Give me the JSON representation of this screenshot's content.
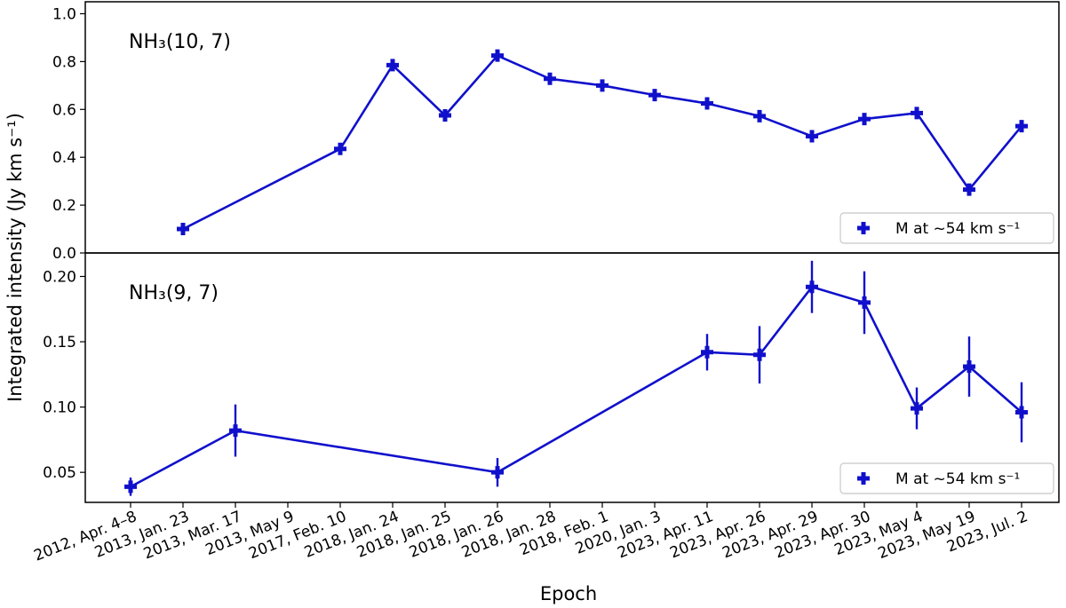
{
  "chart_data": [
    {
      "type": "line",
      "panel_label": "NH₃(10, 7)",
      "ylabel": "Integrated intensity (Jy km s⁻¹)",
      "xlabel": "Epoch",
      "ylim": [
        0.0,
        1.05
      ],
      "yticks": [
        "0.0",
        "0.2",
        "0.4",
        "0.6",
        "0.8",
        "1.0"
      ],
      "ytick_values": [
        0.0,
        0.2,
        0.4,
        0.6,
        0.8,
        1.0
      ],
      "categories": [
        "2012, Apr. 4–8",
        "2013, Jan. 23",
        "2013, Mar. 17",
        "2013, May 9",
        "2017, Feb. 10",
        "2018, Jan. 24",
        "2018, Jan. 25",
        "2018, Jan. 26",
        "2018, Jan. 28",
        "2018, Feb. 1",
        "2020, Jan. 3",
        "2023, Apr. 11",
        "2023, Apr. 26",
        "2023, Apr. 29",
        "2023, Apr. 30",
        "2023, May 4",
        "2023, May 19",
        "2023, Jul. 2"
      ],
      "series": [
        {
          "name": "M at ~54 km s⁻¹",
          "color": "#1010cc",
          "points": [
            {
              "x": "2013, Jan. 23",
              "y": 0.1,
              "err": 0.012
            },
            {
              "x": "2017, Feb. 10",
              "y": 0.435,
              "err": 0.012
            },
            {
              "x": "2018, Jan. 24",
              "y": 0.785,
              "err": 0.012
            },
            {
              "x": "2018, Jan. 25",
              "y": 0.575,
              "err": 0.012
            },
            {
              "x": "2018, Jan. 26",
              "y": 0.825,
              "err": 0.012
            },
            {
              "x": "2018, Jan. 28",
              "y": 0.728,
              "err": 0.012
            },
            {
              "x": "2018, Feb. 1",
              "y": 0.7,
              "err": 0.012
            },
            {
              "x": "2020, Jan. 3",
              "y": 0.66,
              "err": 0.012
            },
            {
              "x": "2023, Apr. 11",
              "y": 0.625,
              "err": 0.012
            },
            {
              "x": "2023, Apr. 26",
              "y": 0.572,
              "err": 0.012
            },
            {
              "x": "2023, Apr. 29",
              "y": 0.488,
              "err": 0.012
            },
            {
              "x": "2023, Apr. 30",
              "y": 0.56,
              "err": 0.012
            },
            {
              "x": "2023, May 4",
              "y": 0.585,
              "err": 0.012
            },
            {
              "x": "2023, May 19",
              "y": 0.265,
              "err": 0.012
            },
            {
              "x": "2023, Jul. 2",
              "y": 0.53,
              "err": 0.012
            }
          ]
        }
      ],
      "legend": {
        "label": "M at ~54 km s⁻¹",
        "placement": "lower-right"
      },
      "grid": false
    },
    {
      "type": "line",
      "panel_label": "NH₃(9, 7)",
      "ylabel": "Integrated intensity (Jy km s⁻¹)",
      "xlabel": "Epoch",
      "ylim": [
        0.027,
        0.218
      ],
      "yticks": [
        "0.05",
        "0.10",
        "0.15",
        "0.20"
      ],
      "ytick_values": [
        0.05,
        0.1,
        0.15,
        0.2
      ],
      "categories": [
        "2012, Apr. 4–8",
        "2013, Jan. 23",
        "2013, Mar. 17",
        "2013, May 9",
        "2017, Feb. 10",
        "2018, Jan. 24",
        "2018, Jan. 25",
        "2018, Jan. 26",
        "2018, Jan. 28",
        "2018, Feb. 1",
        "2020, Jan. 3",
        "2023, Apr. 11",
        "2023, Apr. 26",
        "2023, Apr. 29",
        "2023, Apr. 30",
        "2023, May 4",
        "2023, May 19",
        "2023, Jul. 2"
      ],
      "series": [
        {
          "name": "M at ~54 km s⁻¹",
          "color": "#1010cc",
          "points": [
            {
              "x": "2012, Apr. 4–8",
              "y": 0.039,
              "err": 0.007
            },
            {
              "x": "2013, Mar. 17",
              "y": 0.082,
              "err": 0.02
            },
            {
              "x": "2018, Jan. 26",
              "y": 0.05,
              "err": 0.011
            },
            {
              "x": "2023, Apr. 11",
              "y": 0.142,
              "err": 0.014
            },
            {
              "x": "2023, Apr. 26",
              "y": 0.14,
              "err": 0.022
            },
            {
              "x": "2023, Apr. 29",
              "y": 0.192,
              "err": 0.02
            },
            {
              "x": "2023, Apr. 30",
              "y": 0.18,
              "err": 0.024
            },
            {
              "x": "2023, May 4",
              "y": 0.099,
              "err": 0.016
            },
            {
              "x": "2023, May 19",
              "y": 0.131,
              "err": 0.023
            },
            {
              "x": "2023, Jul. 2",
              "y": 0.096,
              "err": 0.023
            }
          ]
        }
      ],
      "legend": {
        "label": "M at ~54 km s⁻¹",
        "placement": "lower-right"
      },
      "grid": false
    }
  ]
}
